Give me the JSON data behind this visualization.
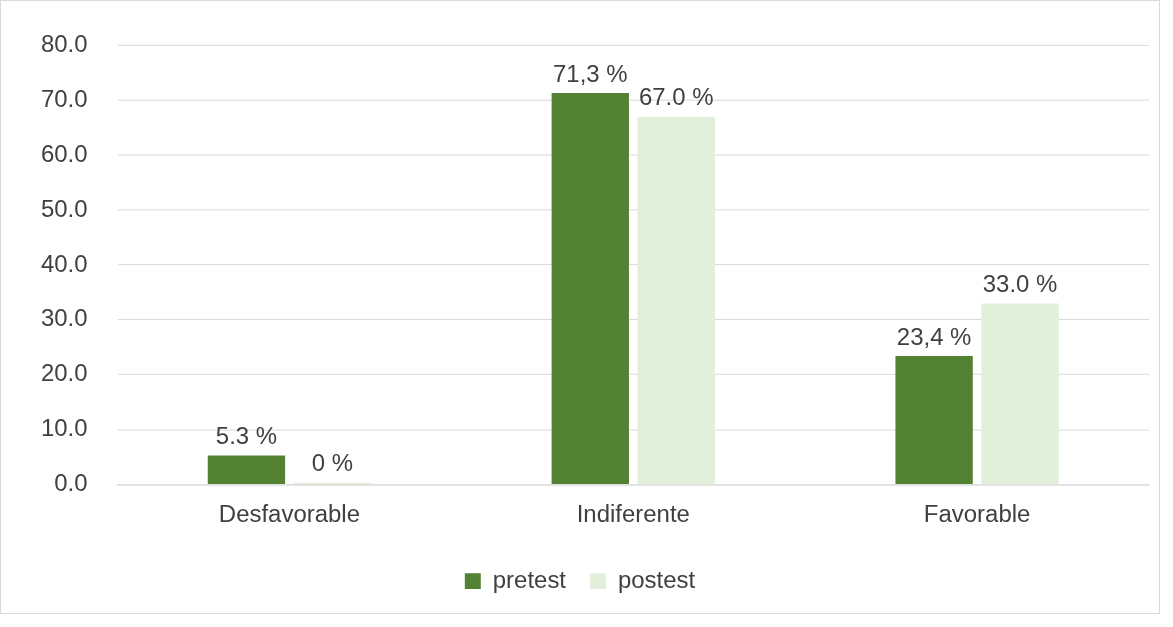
{
  "chart_data": {
    "type": "bar",
    "categories": [
      "Desfavorable",
      "Indiferente",
      "Favorable"
    ],
    "series": [
      {
        "name": "pretest",
        "color": "#548235",
        "values": [
          5.3,
          71.3,
          23.4
        ],
        "value_labels": [
          "5.3 %",
          "71,3 %",
          "23,4 %"
        ]
      },
      {
        "name": "postest",
        "color": "#e2efda",
        "values": [
          0,
          67.0,
          33.0
        ],
        "value_labels": [
          "0 %",
          "67.0 %",
          "33.0 %"
        ]
      }
    ],
    "ylim": [
      0,
      80
    ],
    "yticks": [
      {
        "value": 0,
        "label": "0.0"
      },
      {
        "value": 10,
        "label": "10.0"
      },
      {
        "value": 20,
        "label": "20.0"
      },
      {
        "value": 30,
        "label": "30.0"
      },
      {
        "value": 40,
        "label": "40.0"
      },
      {
        "value": 50,
        "label": "50.0"
      },
      {
        "value": 60,
        "label": "60.0"
      },
      {
        "value": 70,
        "label": "70.0"
      },
      {
        "value": 80,
        "label": "80.0"
      }
    ],
    "grid": "y",
    "legend": "bottom"
  }
}
